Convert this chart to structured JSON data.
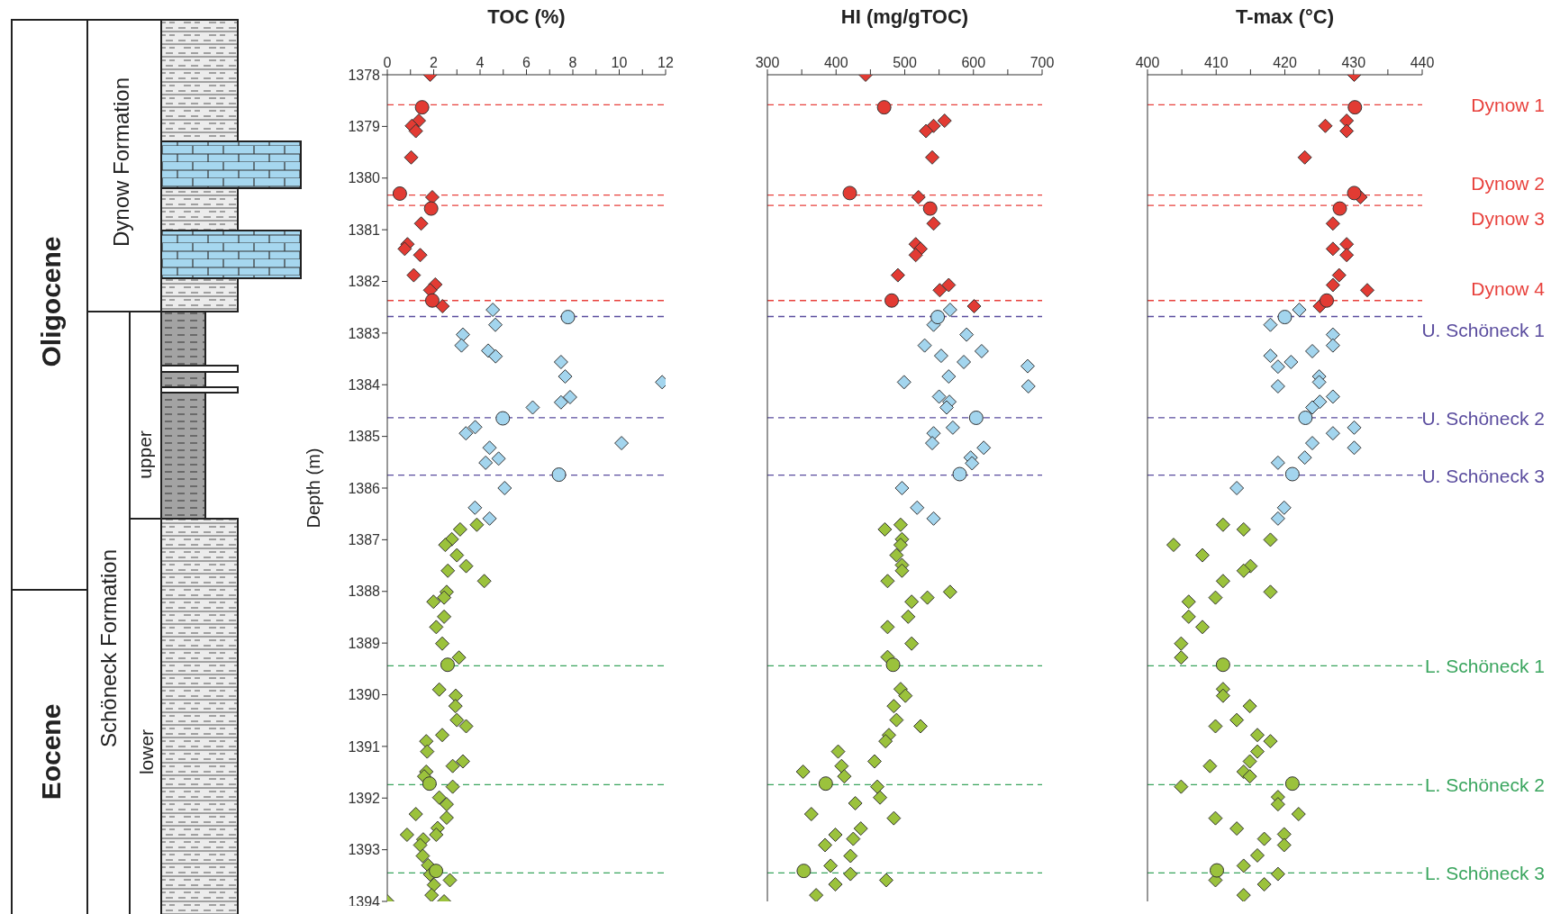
{
  "chart_data": [
    {
      "type": "scatter",
      "title": "TOC (%)",
      "ylabel": "Depth (m)",
      "xlim": [
        0,
        12
      ],
      "xticks": [
        0,
        {
          "value": 1,
          "label": null
        },
        2,
        {
          "value": 3,
          "label": null
        },
        4,
        {
          "value": 5,
          "label": null
        },
        6,
        {
          "value": 7,
          "label": null
        },
        8,
        {
          "value": 9,
          "label": null
        },
        10,
        {
          "value": 11,
          "label": null
        },
        12
      ],
      "ylim": [
        1394,
        1378
      ],
      "yticks": [
        1378,
        1379,
        1380,
        1381,
        1382,
        1383,
        1384,
        1385,
        1386,
        1387,
        1388,
        1389,
        1390,
        1391,
        1392,
        1393,
        1394
      ],
      "annotations": [
        "Oligocene",
        "Eocene",
        "Dynow Formation",
        "Schöneck Formation",
        "upper",
        "lower"
      ],
      "ref_lines": [
        {
          "axis": "y",
          "value": 1378.58,
          "color": "#e8413c",
          "line_style": "dashed"
        },
        {
          "axis": "y",
          "value": 1380.33,
          "color": "#e8413c",
          "line_style": "dashed"
        },
        {
          "axis": "y",
          "value": 1380.53,
          "color": "#e8413c",
          "line_style": "dashed"
        },
        {
          "axis": "y",
          "value": 1382.37,
          "color": "#e8413c",
          "line_style": "dashed"
        },
        {
          "axis": "y",
          "value": 1382.68,
          "color": "#5a4c9e",
          "line_style": "dashed"
        },
        {
          "axis": "y",
          "value": 1384.64,
          "color": "#5a4c9e",
          "line_style": "dashed"
        },
        {
          "axis": "y",
          "value": 1385.75,
          "color": "#5a4c9e",
          "line_style": "dashed"
        },
        {
          "axis": "y",
          "value": 1389.44,
          "color": "#3aa55e",
          "line_style": "dashed"
        },
        {
          "axis": "y",
          "value": 1391.74,
          "color": "#3aa55e",
          "line_style": "dashed"
        },
        {
          "axis": "y",
          "value": 1393.45,
          "color": "#3aa55e",
          "line_style": "dashed"
        }
      ],
      "series": [
        {
          "color": "#e23b33",
          "marker": "diamond",
          "x": [
            1.85,
            1.36,
            1.06,
            1.23,
            1.03,
            1.94,
            1.46,
            0.87,
            0.75,
            1.42,
            1.14,
            2.07,
            1.85,
            2.38
          ],
          "values": [
            1378.0,
            1378.89,
            1378.99,
            1379.09,
            1379.6,
            1380.37,
            1380.88,
            1381.28,
            1381.37,
            1381.49,
            1381.88,
            1382.06,
            1382.17,
            1382.48
          ]
        },
        {
          "color": "#e23b33",
          "marker": "circle",
          "x": [
            1.5,
            0.54,
            1.89,
            1.94
          ],
          "values": [
            1378.63,
            1380.3,
            1380.59,
            1382.37
          ]
        },
        {
          "color": "#a3d5ee",
          "marker": "diamond",
          "x": [
            4.55,
            4.66,
            3.26,
            3.2,
            4.35,
            4.67,
            7.49,
            7.67,
            11.85,
            7.88,
            7.49,
            6.27,
            3.79,
            3.39,
            10.1,
            4.41,
            4.8,
            4.24,
            5.06,
            3.78,
            4.41
          ],
          "values": [
            1382.55,
            1382.84,
            1383.03,
            1383.24,
            1383.34,
            1383.45,
            1383.56,
            1383.84,
            1383.95,
            1384.24,
            1384.34,
            1384.44,
            1384.82,
            1384.94,
            1385.13,
            1385.22,
            1385.43,
            1385.51,
            1386.0,
            1386.38,
            1386.59
          ]
        },
        {
          "color": "#a3d5ee",
          "marker": "circle",
          "x": [
            7.79,
            4.98,
            7.4
          ],
          "values": [
            1382.69,
            1384.65,
            1385.74
          ]
        },
        {
          "color": "#9bc23c",
          "marker": "diamond",
          "x": [
            3.86,
            3.14,
            2.78,
            2.5,
            3.0,
            3.4,
            2.61,
            4.18,
            2.56,
            2.45,
            1.99,
            2.45,
            2.11,
            2.37,
            3.09,
            2.24,
            2.95,
            2.94,
            3.0,
            3.4,
            2.37,
            1.68,
            1.72,
            3.26,
            2.82,
            1.68,
            1.59,
            2.82,
            2.24,
            2.56,
            1.23,
            2.56,
            2.17,
            2.11,
            0.85,
            1.55,
            1.42,
            1.53,
            1.76,
            1.85,
            2.7,
            2.01,
            1.91,
            2.45,
            0
          ],
          "values": [
            1386.71,
            1386.8,
            1386.99,
            1387.1,
            1387.3,
            1387.51,
            1387.6,
            1387.8,
            1388.01,
            1388.12,
            1388.2,
            1388.49,
            1388.69,
            1389.01,
            1389.28,
            1389.9,
            1390.02,
            1390.22,
            1390.49,
            1390.61,
            1390.78,
            1390.9,
            1391.1,
            1391.29,
            1391.38,
            1391.49,
            1391.58,
            1391.78,
            1391.99,
            1392.12,
            1392.31,
            1392.38,
            1392.58,
            1392.71,
            1392.71,
            1392.8,
            1392.91,
            1393.12,
            1393.3,
            1393.48,
            1393.59,
            1393.68,
            1393.88,
            1394.0,
            1394.0
          ]
        },
        {
          "color": "#9bc23c",
          "marker": "circle",
          "x": [
            2.6,
            1.82,
            2.1
          ],
          "values": [
            1389.42,
            1391.72,
            1393.41
          ]
        }
      ]
    },
    {
      "type": "scatter",
      "title": "HI (mg/gTOC)",
      "xlim": [
        300,
        700
      ],
      "xticks": [
        300,
        {
          "value": 350,
          "label": null
        },
        400,
        {
          "value": 450,
          "label": null
        },
        500,
        {
          "value": 550,
          "label": null
        },
        600,
        {
          "value": 650,
          "label": null
        },
        700
      ],
      "ylim": [
        1394,
        1378
      ],
      "tick_labels": "x",
      "ref_lines": [
        {
          "axis": "y",
          "value": 1378.58,
          "color": "#e8413c",
          "line_style": "dashed"
        },
        {
          "axis": "y",
          "value": 1380.33,
          "color": "#e8413c",
          "line_style": "dashed"
        },
        {
          "axis": "y",
          "value": 1380.53,
          "color": "#e8413c",
          "line_style": "dashed"
        },
        {
          "axis": "y",
          "value": 1382.37,
          "color": "#e8413c",
          "line_style": "dashed"
        },
        {
          "axis": "y",
          "value": 1382.68,
          "color": "#5a4c9e",
          "line_style": "dashed"
        },
        {
          "axis": "y",
          "value": 1384.64,
          "color": "#5a4c9e",
          "line_style": "dashed"
        },
        {
          "axis": "y",
          "value": 1385.75,
          "color": "#5a4c9e",
          "line_style": "dashed"
        },
        {
          "axis": "y",
          "value": 1389.44,
          "color": "#3aa55e",
          "line_style": "dashed"
        },
        {
          "axis": "y",
          "value": 1391.74,
          "color": "#3aa55e",
          "line_style": "dashed"
        },
        {
          "axis": "y",
          "value": 1393.45,
          "color": "#3aa55e",
          "line_style": "dashed"
        }
      ],
      "series": [
        {
          "color": "#e23b33",
          "marker": "diamond",
          "x": [
            443,
            558,
            542,
            531,
            540,
            520,
            542,
            516,
            523,
            516,
            490,
            564,
            551,
            601
          ],
          "values": [
            1378.0,
            1378.89,
            1378.99,
            1379.09,
            1379.6,
            1380.37,
            1380.88,
            1381.28,
            1381.37,
            1381.49,
            1381.88,
            1382.07,
            1382.17,
            1382.48
          ]
        },
        {
          "color": "#e23b33",
          "marker": "circle",
          "x": [
            470,
            420,
            537,
            481
          ],
          "values": [
            1378.63,
            1380.29,
            1380.59,
            1382.37
          ]
        },
        {
          "color": "#a3d5ee",
          "marker": "diamond",
          "x": [
            566,
            542,
            590,
            529,
            612,
            553,
            586,
            679,
            564,
            499,
            680,
            550,
            565,
            561,
            570,
            542,
            540,
            615,
            596,
            598,
            496,
            518,
            542
          ],
          "values": [
            1382.55,
            1382.84,
            1383.03,
            1383.24,
            1383.35,
            1383.44,
            1383.56,
            1383.64,
            1383.84,
            1383.95,
            1384.03,
            1384.23,
            1384.33,
            1384.44,
            1384.83,
            1384.94,
            1385.13,
            1385.22,
            1385.41,
            1385.52,
            1386.0,
            1386.38,
            1386.59
          ]
        },
        {
          "color": "#a3d5ee",
          "marker": "circle",
          "x": [
            548,
            604,
            580
          ],
          "values": [
            1382.69,
            1384.64,
            1385.73
          ]
        },
        {
          "color": "#9bc23c",
          "marker": "diamond",
          "x": [
            494,
            471,
            496,
            494,
            488,
            496,
            496,
            475,
            566,
            533,
            510,
            505,
            475,
            510,
            475,
            494,
            501,
            484,
            488,
            523,
            477,
            472,
            403,
            456,
            408,
            352,
            412,
            460,
            464,
            428,
            364,
            484,
            436,
            399,
            425,
            384,
            421,
            392,
            421,
            473,
            399,
            371
          ],
          "values": [
            1386.71,
            1386.8,
            1386.99,
            1387.1,
            1387.3,
            1387.49,
            1387.6,
            1387.8,
            1388.01,
            1388.12,
            1388.2,
            1388.49,
            1388.69,
            1389.01,
            1389.27,
            1389.89,
            1390.02,
            1390.22,
            1390.49,
            1390.61,
            1390.78,
            1390.9,
            1391.1,
            1391.29,
            1391.38,
            1391.49,
            1391.58,
            1391.78,
            1391.99,
            1392.1,
            1392.31,
            1392.39,
            1392.59,
            1392.71,
            1392.79,
            1392.91,
            1393.12,
            1393.31,
            1393.47,
            1393.59,
            1393.67,
            1393.88
          ]
        },
        {
          "color": "#9bc23c",
          "marker": "circle",
          "x": [
            483,
            385,
            353
          ],
          "values": [
            1389.42,
            1391.72,
            1393.41
          ]
        }
      ]
    },
    {
      "type": "scatter",
      "title": "T-max (°C)",
      "xlim": [
        400,
        440
      ],
      "xticks": [
        400,
        {
          "value": 405,
          "label": null
        },
        410,
        {
          "value": 415,
          "label": null
        },
        420,
        {
          "value": 425,
          "label": null
        },
        430,
        {
          "value": 435,
          "label": null
        },
        440
      ],
      "ylim": [
        1394,
        1378
      ],
      "tick_labels": "x",
      "ref_lines": [
        {
          "axis": "y",
          "value": 1378.58,
          "color": "#e8413c",
          "line_style": "dashed",
          "label": "Dynow 1"
        },
        {
          "axis": "y",
          "value": 1380.33,
          "color": "#e8413c",
          "line_style": "dashed",
          "label": "Dynow 2"
        },
        {
          "axis": "y",
          "value": 1380.53,
          "color": "#e8413c",
          "line_style": "dashed",
          "label": "Dynow 3"
        },
        {
          "axis": "y",
          "value": 1382.37,
          "color": "#e8413c",
          "line_style": "dashed",
          "label": "Dynow 4"
        },
        {
          "axis": "y",
          "value": 1382.68,
          "color": "#5a4c9e",
          "line_style": "dashed",
          "label": "U. Schöneck 1"
        },
        {
          "axis": "y",
          "value": 1384.64,
          "color": "#5a4c9e",
          "line_style": "dashed",
          "label": "U. Schöneck 2"
        },
        {
          "axis": "y",
          "value": 1385.75,
          "color": "#5a4c9e",
          "line_style": "dashed",
          "label": "U. Schöneck 3"
        },
        {
          "axis": "y",
          "value": 1389.44,
          "color": "#3aa55e",
          "line_style": "dashed",
          "label": "L. Schöneck 1"
        },
        {
          "axis": "y",
          "value": 1391.74,
          "color": "#3aa55e",
          "line_style": "dashed",
          "label": "L. Schöneck 2"
        },
        {
          "axis": "y",
          "value": 1393.45,
          "color": "#3aa55e",
          "line_style": "dashed",
          "label": "L. Schöneck 3"
        }
      ],
      "series": [
        {
          "color": "#e23b33",
          "marker": "diamond",
          "x": [
            430.1,
            429,
            425.9,
            429,
            422.9,
            431,
            427,
            429,
            427,
            429,
            427.9,
            427,
            432,
            425.1
          ],
          "values": [
            1378.0,
            1378.89,
            1378.99,
            1379.09,
            1379.6,
            1380.37,
            1380.88,
            1381.28,
            1381.37,
            1381.49,
            1381.88,
            1382.07,
            1382.17,
            1382.48
          ]
        },
        {
          "color": "#e23b33",
          "marker": "circle",
          "x": [
            430.2,
            430.1,
            428,
            426.1
          ],
          "values": [
            1378.63,
            1380.29,
            1380.59,
            1382.37
          ]
        },
        {
          "color": "#a3d5ee",
          "marker": "diamond",
          "x": [
            422.1,
            417.9,
            427,
            427,
            424,
            417.9,
            420.9,
            419,
            425,
            425,
            419,
            427,
            425.1,
            424,
            430.1,
            427,
            424,
            430.1,
            422.9,
            419,
            413,
            419.9,
            419
          ],
          "values": [
            1382.55,
            1382.84,
            1383.03,
            1383.24,
            1383.35,
            1383.44,
            1383.56,
            1383.65,
            1383.84,
            1383.95,
            1384.03,
            1384.23,
            1384.33,
            1384.44,
            1384.83,
            1384.94,
            1385.13,
            1385.22,
            1385.41,
            1385.51,
            1386.0,
            1386.38,
            1386.59
          ]
        },
        {
          "color": "#a3d5ee",
          "marker": "circle",
          "x": [
            420,
            423,
            421.1
          ],
          "values": [
            1382.69,
            1384.64,
            1385.73
          ]
        },
        {
          "color": "#9bc23c",
          "marker": "diamond",
          "x": [
            411,
            414,
            417.9,
            403.8,
            408,
            415,
            414,
            411,
            417.9,
            409.9,
            406,
            406,
            408,
            404.9,
            404.9,
            411,
            411,
            414.9,
            413,
            409.9,
            416,
            417.9,
            416,
            414.9,
            409.1,
            414,
            414.9,
            404.9,
            419,
            419,
            422,
            409.9,
            413,
            419.9,
            417,
            419.9,
            416,
            414,
            419,
            409.9,
            417,
            414
          ],
          "values": [
            1386.71,
            1386.8,
            1387.0,
            1387.1,
            1387.3,
            1387.51,
            1387.6,
            1387.8,
            1388.01,
            1388.12,
            1388.2,
            1388.49,
            1388.69,
            1389.01,
            1389.28,
            1389.89,
            1390.02,
            1390.22,
            1390.49,
            1390.61,
            1390.78,
            1390.9,
            1391.1,
            1391.29,
            1391.38,
            1391.49,
            1391.58,
            1391.78,
            1391.98,
            1392.12,
            1392.31,
            1392.39,
            1392.59,
            1392.7,
            1392.79,
            1392.91,
            1393.11,
            1393.31,
            1393.47,
            1393.59,
            1393.67,
            1393.88
          ]
        },
        {
          "color": "#9bc23c",
          "marker": "circle",
          "x": [
            411,
            421.1,
            410.1
          ],
          "values": [
            1389.42,
            1391.72,
            1393.4
          ]
        }
      ]
    }
  ]
}
